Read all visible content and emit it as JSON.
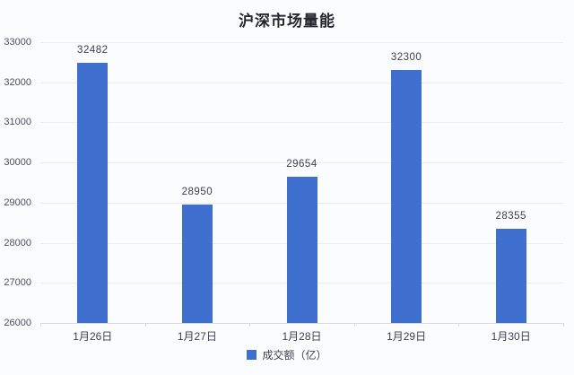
{
  "chart_data": {
    "type": "bar",
    "title": "沪深市场量能",
    "categories": [
      "1月26日",
      "1月27日",
      "1月28日",
      "1月29日",
      "1月30日"
    ],
    "series": [
      {
        "name": "成交额（亿）",
        "values": [
          32482,
          28950,
          29654,
          32300,
          28355
        ]
      }
    ],
    "ylabel": "",
    "xlabel": "",
    "ylim": [
      26000,
      33000
    ],
    "ytick_step": 1000,
    "ytick_labels": [
      "26000",
      "27000",
      "28000",
      "29000",
      "30000",
      "31000",
      "32000",
      "33000"
    ],
    "grid": true,
    "legend_position": "bottom",
    "bar_color": "#3f70d0",
    "background_color": "#fbfcfe",
    "gridline_color": "#e9ecf2",
    "axis_line_color": "#d7dbe3",
    "label_color": "#3a3f4d"
  }
}
